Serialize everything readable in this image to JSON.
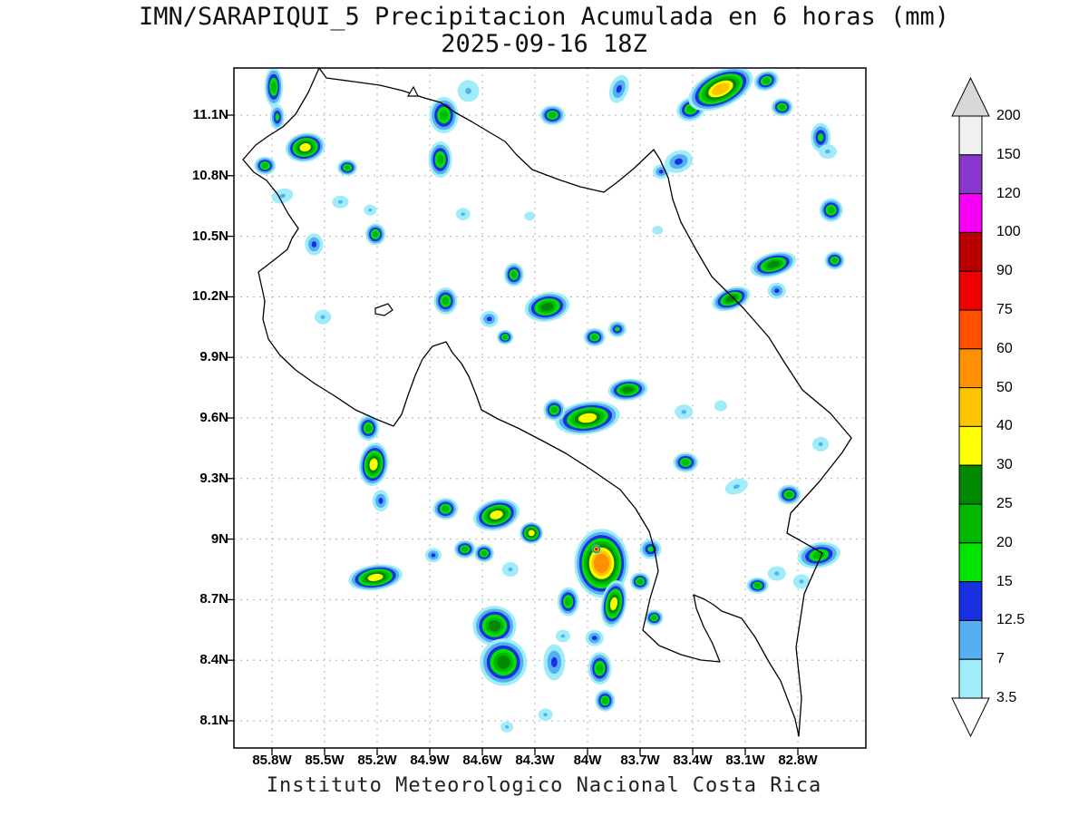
{
  "title": "IMN/SARAPIQUI_5 Precipitacion Acumulada en 6 horas (mm)",
  "subtitle": "2025-09-16 18Z",
  "footer": "Instituto Meteorologico Nacional Costa Rica",
  "axes": {
    "lat_ticks": [
      "11.1N",
      "10.8N",
      "10.5N",
      "10.2N",
      "9.9N",
      "9.6N",
      "9.3N",
      "9N",
      "8.7N",
      "8.4N",
      "8.1N"
    ],
    "lon_ticks": [
      "85.8W",
      "85.5W",
      "85.2W",
      "84.9W",
      "84.6W",
      "84.3W",
      "84W",
      "83.7W",
      "83.4W",
      "83.1W",
      "82.8W"
    ]
  },
  "colorbar": {
    "labels": [
      "200",
      "150",
      "120",
      "100",
      "90",
      "75",
      "60",
      "50",
      "40",
      "30",
      "25",
      "20",
      "15",
      "12.5",
      "7",
      "3.5"
    ],
    "segment_colors": [
      "#f0f0f0",
      "#8836cc",
      "#f800f8",
      "#b80000",
      "#f00000",
      "#ff5000",
      "#ff9000",
      "#ffc400",
      "#ffff00",
      "#008800",
      "#00b800",
      "#00e400",
      "#1830e0",
      "#55b0f2",
      "#a0ecf8"
    ],
    "top_arrow_color": "#d8d8d8",
    "bottom_arrow_color": "#ffffff"
  },
  "chart_data": {
    "type": "heatmap",
    "title": "IMN/SARAPIQUI_5 Precipitacion Acumulada en 6 horas (mm)",
    "valid_time": "2025-09-16 18Z",
    "units": "mm",
    "region": "Costa Rica",
    "source": "Instituto Meteorologico Nacional Costa Rica",
    "lon_ticks_degW": [
      85.8,
      85.5,
      85.2,
      84.9,
      84.6,
      84.3,
      84.0,
      83.7,
      83.4,
      83.1,
      82.8
    ],
    "lat_ticks_degN": [
      11.1,
      10.8,
      10.5,
      10.2,
      9.9,
      9.6,
      9.3,
      9.0,
      8.7,
      8.4,
      8.1
    ],
    "levels_mm": [
      3.5,
      7,
      12.5,
      15,
      20,
      25,
      30,
      40,
      50,
      60,
      75,
      90,
      100,
      120,
      150,
      200
    ],
    "level_colors": [
      "#a0ecf8",
      "#55b0f2",
      "#1830e0",
      "#00e400",
      "#00b800",
      "#008800",
      "#ffff00",
      "#ffc400",
      "#ff9000",
      "#ff5000",
      "#f00000",
      "#b80000",
      "#f800f8",
      "#8836cc",
      "#f0f0f0",
      "#d8d8d8"
    ],
    "cells_format": [
      "lon_degW",
      "lat_degN",
      "rx_deg",
      "ry_deg",
      "rot_deg",
      "peak_mm"
    ],
    "cells": [
      [
        85.79,
        11.24,
        0.052,
        0.099,
        0,
        20
      ],
      [
        85.77,
        11.09,
        0.041,
        0.063,
        0,
        15
      ],
      [
        84.82,
        11.1,
        0.083,
        0.09,
        0,
        20
      ],
      [
        84.68,
        11.22,
        0.062,
        0.054,
        0,
        7
      ],
      [
        84.2,
        11.1,
        0.072,
        0.049,
        0,
        20
      ],
      [
        83.82,
        11.23,
        0.052,
        0.072,
        20,
        12.5
      ],
      [
        83.41,
        11.13,
        0.083,
        0.058,
        -20,
        20
      ],
      [
        83.24,
        11.23,
        0.197,
        0.09,
        -25,
        40
      ],
      [
        82.98,
        11.27,
        0.072,
        0.049,
        -20,
        20
      ],
      [
        82.89,
        11.14,
        0.062,
        0.045,
        0,
        20
      ],
      [
        82.67,
        10.99,
        0.057,
        0.072,
        0,
        15
      ],
      [
        85.61,
        10.94,
        0.114,
        0.072,
        -10,
        30
      ],
      [
        85.84,
        10.85,
        0.062,
        0.045,
        0,
        20
      ],
      [
        85.37,
        10.84,
        0.057,
        0.04,
        0,
        20
      ],
      [
        84.84,
        10.88,
        0.067,
        0.09,
        0,
        20
      ],
      [
        83.48,
        10.87,
        0.083,
        0.054,
        -20,
        12.5
      ],
      [
        82.63,
        10.92,
        0.052,
        0.036,
        0,
        7
      ],
      [
        85.74,
        10.7,
        0.062,
        0.036,
        -15,
        7
      ],
      [
        85.41,
        10.67,
        0.047,
        0.031,
        0,
        7
      ],
      [
        85.24,
        10.63,
        0.036,
        0.027,
        0,
        7
      ],
      [
        84.71,
        10.61,
        0.041,
        0.031,
        0,
        7
      ],
      [
        83.58,
        10.82,
        0.047,
        0.036,
        0,
        12.5
      ],
      [
        82.61,
        10.63,
        0.067,
        0.058,
        0,
        20
      ],
      [
        85.56,
        10.46,
        0.052,
        0.054,
        0,
        12.5
      ],
      [
        85.21,
        10.51,
        0.057,
        0.054,
        0,
        20
      ],
      [
        82.94,
        10.36,
        0.134,
        0.058,
        -15,
        25
      ],
      [
        82.59,
        10.38,
        0.057,
        0.045,
        0,
        20
      ],
      [
        85.51,
        10.1,
        0.047,
        0.036,
        0,
        7
      ],
      [
        84.81,
        10.18,
        0.067,
        0.067,
        0,
        20
      ],
      [
        84.56,
        10.09,
        0.052,
        0.04,
        0,
        12.5
      ],
      [
        84.42,
        10.31,
        0.057,
        0.058,
        0,
        20
      ],
      [
        84.23,
        10.15,
        0.129,
        0.072,
        -10,
        25
      ],
      [
        83.96,
        10.0,
        0.062,
        0.045,
        0,
        20
      ],
      [
        83.18,
        10.19,
        0.114,
        0.054,
        -20,
        25
      ],
      [
        82.92,
        10.23,
        0.052,
        0.04,
        0,
        12.5
      ],
      [
        84.47,
        10.0,
        0.047,
        0.036,
        0,
        20
      ],
      [
        83.83,
        10.04,
        0.052,
        0.04,
        0,
        15
      ],
      [
        83.77,
        9.74,
        0.114,
        0.054,
        -5,
        25
      ],
      [
        83.45,
        9.63,
        0.052,
        0.036,
        0,
        7
      ],
      [
        84.0,
        9.6,
        0.186,
        0.081,
        -8,
        30
      ],
      [
        84.19,
        9.64,
        0.062,
        0.054,
        0,
        20
      ],
      [
        83.44,
        9.38,
        0.072,
        0.049,
        0,
        20
      ],
      [
        83.15,
        9.26,
        0.067,
        0.036,
        -20,
        7
      ],
      [
        82.85,
        9.22,
        0.067,
        0.049,
        0,
        20
      ],
      [
        82.67,
        9.47,
        0.047,
        0.036,
        0,
        7
      ],
      [
        85.25,
        9.55,
        0.062,
        0.063,
        0,
        20
      ],
      [
        85.22,
        9.37,
        0.083,
        0.108,
        8,
        30
      ],
      [
        85.18,
        9.19,
        0.047,
        0.054,
        0,
        12.5
      ],
      [
        84.81,
        9.15,
        0.072,
        0.054,
        0,
        20
      ],
      [
        84.52,
        9.12,
        0.134,
        0.076,
        -15,
        30
      ],
      [
        84.32,
        9.03,
        0.067,
        0.054,
        0,
        30
      ],
      [
        84.7,
        8.95,
        0.062,
        0.045,
        0,
        20
      ],
      [
        84.88,
        8.92,
        0.047,
        0.036,
        0,
        12.5
      ],
      [
        83.64,
        8.95,
        0.062,
        0.049,
        0,
        15
      ],
      [
        82.68,
        8.92,
        0.124,
        0.063,
        -10,
        20
      ],
      [
        82.92,
        8.83,
        0.052,
        0.036,
        0,
        7
      ],
      [
        85.21,
        8.81,
        0.155,
        0.063,
        -8,
        30
      ],
      [
        84.59,
        8.93,
        0.057,
        0.045,
        0,
        20
      ],
      [
        84.44,
        8.85,
        0.047,
        0.036,
        0,
        7
      ],
      [
        83.92,
        8.88,
        0.155,
        0.171,
        0,
        50
      ],
      [
        83.7,
        8.79,
        0.057,
        0.045,
        0,
        20
      ],
      [
        83.03,
        8.77,
        0.062,
        0.04,
        0,
        20
      ],
      [
        82.78,
        8.79,
        0.047,
        0.036,
        0,
        7
      ],
      [
        84.53,
        8.57,
        0.124,
        0.099,
        0,
        25
      ],
      [
        84.11,
        8.69,
        0.062,
        0.072,
        0,
        20
      ],
      [
        83.85,
        8.68,
        0.072,
        0.117,
        10,
        30
      ],
      [
        83.62,
        8.61,
        0.052,
        0.04,
        0,
        20
      ],
      [
        83.96,
        8.51,
        0.052,
        0.04,
        0,
        12.5
      ],
      [
        84.14,
        8.52,
        0.041,
        0.031,
        0,
        7
      ],
      [
        84.48,
        8.39,
        0.134,
        0.117,
        0,
        25
      ],
      [
        84.19,
        8.39,
        0.062,
        0.09,
        0,
        12.5
      ],
      [
        83.93,
        8.36,
        0.067,
        0.081,
        0,
        20
      ],
      [
        83.9,
        8.2,
        0.057,
        0.054,
        0,
        20
      ],
      [
        84.24,
        8.13,
        0.041,
        0.031,
        0,
        7
      ],
      [
        84.46,
        8.07,
        0.036,
        0.027,
        0,
        7
      ],
      [
        83.95,
        8.95,
        0.026,
        0.022,
        0,
        75
      ],
      [
        83.6,
        10.53,
        0.031,
        0.022,
        0,
        3.5
      ],
      [
        83.24,
        9.66,
        0.036,
        0.027,
        0,
        3.5
      ],
      [
        84.33,
        10.6,
        0.031,
        0.022,
        0,
        3.5
      ]
    ]
  }
}
